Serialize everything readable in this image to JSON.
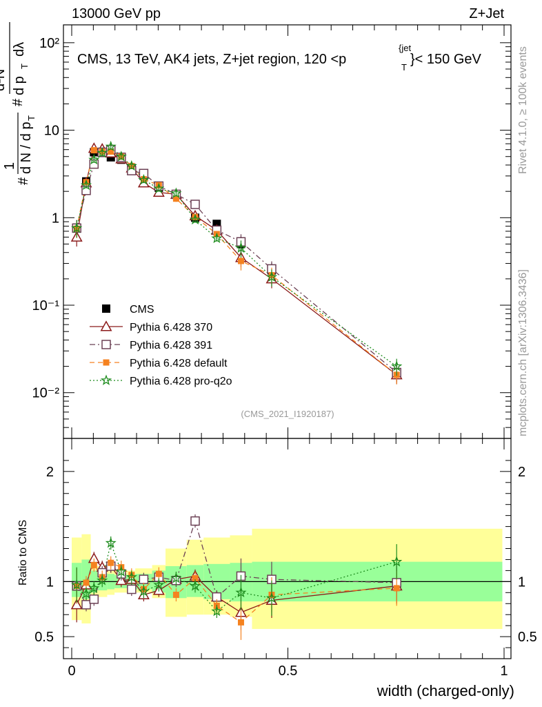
{
  "header": {
    "left": "13000 GeV pp",
    "right": "Z+Jet"
  },
  "side_labels": {
    "rivet": "Rivet 4.1.0, ≥ 100k events",
    "mcplots": "mcplots.cern.ch [arXiv:1306.3436]"
  },
  "analysis_tag": "(CMS_2021_I1920187)",
  "colors": {
    "cms": "#000000",
    "p370": "#8b1a1a",
    "p391": "#6b4054",
    "pdefault": "#f58220",
    "pq2o": "#1e8c1e",
    "band_outer": "#ffff99",
    "band_inner": "#99ff99"
  },
  "chart_data": {
    "type": "line",
    "title": "CMS, 13 TeV, AK4 jets, Z+jet region, 120 <p_T^{jet}< 150 GeV",
    "title_parts": {
      "pre": "CMS, 13 TeV, AK4 jets, Z+jet region, 120 <p",
      "sub": "T",
      "sup": "{jet",
      "post": "}< 150 GeV"
    },
    "xlabel": "width (charged-only)",
    "ylabel": "1/N dN/dp_T d²N/dp_T dλ",
    "ylabel_parts": {
      "hash1": "#",
      "one": "1",
      "dn": "d N / d p",
      "t1": "T",
      "hash2": "#",
      "d2n": "d²N",
      "dp": "d p",
      "t2": "T",
      "dl": "dλ"
    },
    "ratio_ylabel": "Ratio to CMS",
    "xlim": [
      0,
      1
    ],
    "ylim_log": [
      0.003,
      160
    ],
    "ratio_ylim": [
      0.3,
      2.3
    ],
    "main_ticks": {
      "labels": [
        "10⁻²",
        "10⁻¹",
        "1",
        "10",
        "10²"
      ],
      "values": [
        0.01,
        0.1,
        1,
        10,
        100
      ]
    },
    "ratio_ticks": {
      "labels": [
        "0.5",
        "1",
        "2"
      ],
      "values": [
        0.5,
        1,
        2
      ]
    },
    "ratio_right_ticks": {
      "labels": [
        "0.5",
        "1",
        "2"
      ],
      "values": [
        0.5,
        1,
        2
      ]
    },
    "x_ticks": {
      "labels": [
        "0",
        "0.5",
        "1"
      ],
      "values": [
        0,
        0.5,
        1
      ]
    },
    "x": [
      0.0115,
      0.0335,
      0.0515,
      0.0705,
      0.0905,
      0.1145,
      0.1385,
      0.1665,
      0.2015,
      0.2415,
      0.2855,
      0.3355,
      0.3915,
      0.4625,
      0.7515
    ],
    "band": {
      "edges": [
        0.0,
        0.023,
        0.044,
        0.059,
        0.082,
        0.099,
        0.13,
        0.147,
        0.186,
        0.217,
        0.266,
        0.305,
        0.366,
        0.417,
        0.508,
        0.996
      ],
      "outer": [
        [
          0.65,
          1.4
        ],
        [
          0.62,
          1.43
        ],
        [
          0.82,
          1.18
        ],
        [
          0.86,
          1.14
        ],
        [
          0.88,
          1.12
        ],
        [
          0.9,
          1.1
        ],
        [
          0.9,
          1.1
        ],
        [
          0.9,
          1.12
        ],
        [
          0.85,
          1.15
        ],
        [
          0.68,
          1.3
        ],
        [
          0.7,
          1.38
        ],
        [
          0.7,
          1.4
        ],
        [
          0.68,
          1.42
        ],
        [
          0.57,
          1.48
        ],
        [
          0.57,
          1.48
        ]
      ],
      "inner": [
        [
          0.86,
          1.17
        ],
        [
          0.84,
          1.2
        ],
        [
          0.9,
          1.1
        ],
        [
          0.92,
          1.08
        ],
        [
          0.93,
          1.07
        ],
        [
          0.94,
          1.06
        ],
        [
          0.94,
          1.06
        ],
        [
          0.93,
          1.07
        ],
        [
          0.9,
          1.1
        ],
        [
          0.85,
          1.14
        ],
        [
          0.86,
          1.15
        ],
        [
          0.84,
          1.16
        ],
        [
          0.82,
          1.17
        ],
        [
          0.82,
          1.18
        ],
        [
          0.82,
          1.18
        ]
      ]
    },
    "series": [
      {
        "name": "CMS",
        "key": "cms",
        "marker": "square-filled",
        "line": "none",
        "values": [
          0.77,
          2.6,
          5.6,
          5.5,
          4.9,
          4.6,
          3.7,
          3.0,
          2.2,
          1.85,
          1.0,
          0.85,
          0.5,
          0.25,
          0.017
        ]
      },
      {
        "name": "Pythia 6.428 370",
        "key": "p370",
        "marker": "triangle-open",
        "line": "solid",
        "values": [
          0.6,
          2.5,
          6.2,
          6.1,
          5.5,
          4.7,
          3.7,
          2.5,
          1.95,
          1.85,
          1.05,
          0.72,
          0.35,
          0.2,
          0.016
        ],
        "ratio": [
          0.79,
          0.97,
          1.21,
          1.13,
          1.14,
          1.01,
          1.02,
          0.88,
          0.92,
          1.02,
          1.05,
          0.86,
          0.72,
          0.83,
          0.96
        ]
      },
      {
        "name": "Pythia 6.428 391",
        "key": "p391",
        "marker": "square-open",
        "line": "dashdot",
        "values": [
          0.76,
          2.05,
          4.1,
          5.6,
          6.0,
          4.9,
          3.45,
          3.2,
          2.3,
          1.85,
          1.42,
          0.72,
          0.53,
          0.26,
          0.017
        ],
        "ratio": [
          0.96,
          0.79,
          0.84,
          1.08,
          1.14,
          1.07,
          0.93,
          1.02,
          1.04,
          1.01,
          1.55,
          0.86,
          1.05,
          1.02,
          0.99
        ]
      },
      {
        "name": "Pythia 6.428 default",
        "key": "pdefault",
        "marker": "square-filled-small",
        "line": "dashed",
        "values": [
          0.75,
          2.55,
          5.9,
          5.7,
          5.7,
          5.0,
          3.9,
          2.75,
          2.35,
          1.65,
          1.02,
          0.65,
          0.32,
          0.22,
          0.016
        ],
        "ratio": [
          0.96,
          0.99,
          1.15,
          1.04,
          1.17,
          1.13,
          1.06,
          0.93,
          1.07,
          0.88,
          1.03,
          0.78,
          0.63,
          0.88,
          0.94
        ]
      },
      {
        "name": "Pythia 6.428 pro-q2o",
        "key": "pq2o",
        "marker": "star",
        "line": "dotted",
        "values": [
          0.76,
          2.35,
          4.6,
          5.5,
          6.5,
          5.0,
          3.9,
          2.7,
          2.15,
          1.9,
          0.95,
          0.58,
          0.45,
          0.21,
          0.02
        ],
        "ratio": [
          0.97,
          0.89,
          0.94,
          1.01,
          1.35,
          1.09,
          1.04,
          0.91,
          0.97,
          1.03,
          0.96,
          0.73,
          0.9,
          0.85,
          1.18
        ]
      }
    ]
  }
}
